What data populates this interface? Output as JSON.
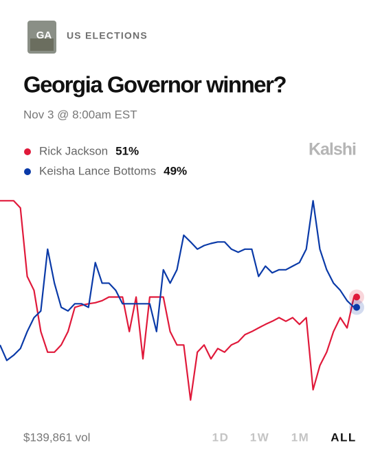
{
  "header": {
    "badge": "GA",
    "category": "US ELECTIONS",
    "brand": "Kalshi"
  },
  "chart_data": {
    "type": "line",
    "title": "Georgia Governor winner?",
    "subtitle": "Nov 3 @ 8:00am EST",
    "ylim": [
      30,
      70
    ],
    "series": [
      {
        "name": "Rick Jackson",
        "color": "#e0193a",
        "last_label": "51%",
        "values": [
          69.7,
          69.7,
          69.7,
          68.3,
          55,
          52.3,
          44.3,
          40.3,
          40.3,
          41.7,
          44.3,
          49,
          49.4,
          49.7,
          49.9,
          50.3,
          51,
          51,
          51,
          44.3,
          51,
          39,
          51,
          51,
          51,
          44.3,
          41.7,
          41.7,
          31,
          40.3,
          41.7,
          39,
          41,
          40.3,
          41.7,
          42.3,
          43.7,
          44.3,
          45,
          45.7,
          46.3,
          47,
          46.3,
          47,
          45.7,
          47,
          33,
          37.7,
          40.3,
          44.3,
          47,
          45,
          51
        ]
      },
      {
        "name": "Keisha Lance Bottoms",
        "color": "#0a3aa8",
        "last_label": "49%",
        "values": [
          41.7,
          38.7,
          39.7,
          41,
          44.3,
          47,
          48.3,
          60.3,
          53.7,
          49,
          48.3,
          49.7,
          49.7,
          49,
          57.7,
          53.7,
          53.7,
          52.3,
          49.7,
          49.7,
          49.7,
          49.7,
          49.7,
          44.3,
          56.3,
          53.7,
          56.3,
          63,
          61.7,
          60.3,
          61,
          61.4,
          61.7,
          61.7,
          60.3,
          59.7,
          60.3,
          60.3,
          55,
          57,
          55.7,
          56.3,
          56.3,
          57,
          57.7,
          60.3,
          69.7,
          60.3,
          56.3,
          53.7,
          52.3,
          50.3,
          49
        ]
      }
    ]
  },
  "footer": {
    "volume": "$139,861 vol",
    "ranges": [
      "1D",
      "1W",
      "1M",
      "ALL"
    ],
    "active_range": "ALL"
  }
}
